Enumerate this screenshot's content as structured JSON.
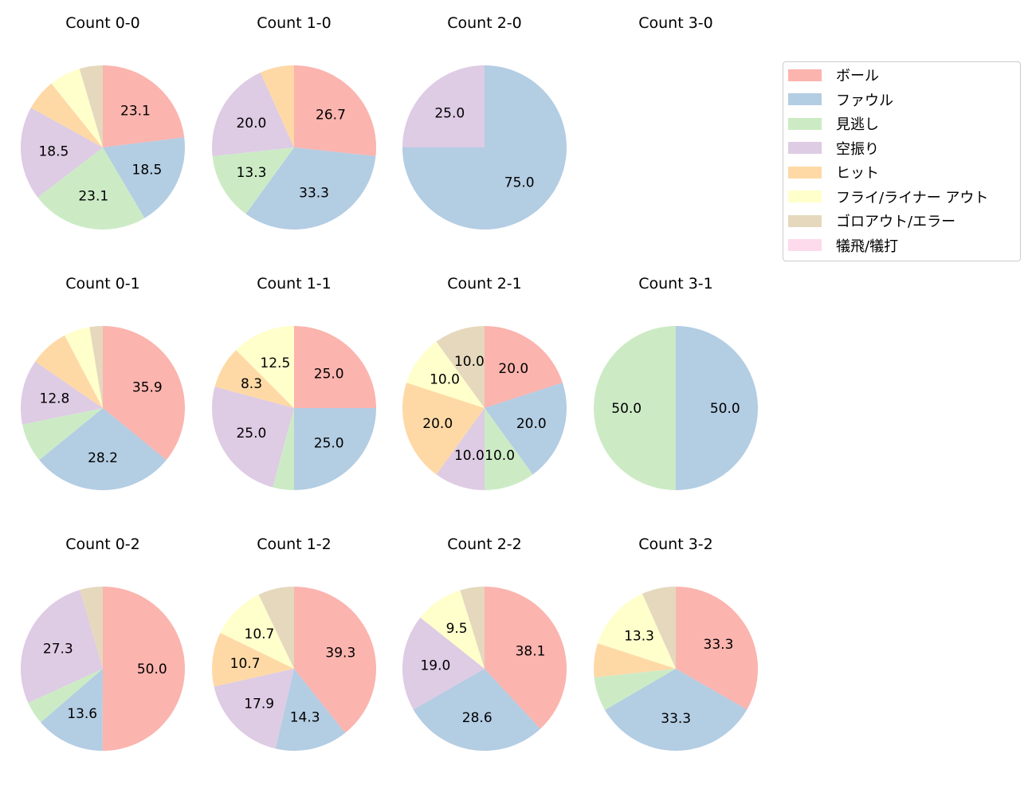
{
  "chart_data": {
    "type": "pie",
    "categories": [
      "ボール",
      "ファウル",
      "見逃し",
      "空振り",
      "ヒット",
      "フライ/ライナー アウト",
      "ゴロアウト/エラー",
      "犠飛/犠打"
    ],
    "colors": [
      "#fbb4ae",
      "#b3cde3",
      "#ccebc5",
      "#decbe4",
      "#fed9a6",
      "#ffffcc",
      "#e5d8bd",
      "#fddaec"
    ],
    "legend_position": "right",
    "charts": [
      {
        "title": "Count 0-0",
        "values": [
          23.1,
          18.5,
          23.1,
          18.5,
          6.2,
          6.2,
          4.6,
          0
        ]
      },
      {
        "title": "Count 1-0",
        "values": [
          26.7,
          33.3,
          13.3,
          20.0,
          6.7,
          0,
          0,
          0
        ]
      },
      {
        "title": "Count 2-0",
        "values": [
          0,
          75.0,
          0,
          25.0,
          0,
          0,
          0,
          0
        ]
      },
      {
        "title": "Count 3-0",
        "values": [
          0,
          0,
          0,
          0,
          0,
          0,
          0,
          0
        ]
      },
      {
        "title": "Count 0-1",
        "values": [
          35.9,
          28.2,
          7.7,
          12.8,
          7.7,
          5.1,
          2.6,
          0
        ]
      },
      {
        "title": "Count 1-1",
        "values": [
          25.0,
          25.0,
          4.2,
          25.0,
          8.3,
          12.5,
          0,
          0
        ]
      },
      {
        "title": "Count 2-1",
        "values": [
          20.0,
          20.0,
          10.0,
          10.0,
          20.0,
          10.0,
          10.0,
          0
        ]
      },
      {
        "title": "Count 3-1",
        "values": [
          0,
          50.0,
          50.0,
          0,
          0,
          0,
          0,
          0
        ]
      },
      {
        "title": "Count 0-2",
        "values": [
          50.0,
          13.6,
          4.5,
          27.3,
          0,
          0,
          4.5,
          0
        ]
      },
      {
        "title": "Count 1-2",
        "values": [
          39.3,
          14.3,
          0,
          17.9,
          10.7,
          10.7,
          7.1,
          0
        ]
      },
      {
        "title": "Count 2-2",
        "values": [
          38.1,
          28.6,
          0,
          19.0,
          0,
          9.5,
          4.8,
          0
        ]
      },
      {
        "title": "Count 3-2",
        "values": [
          33.3,
          33.3,
          6.7,
          0,
          6.7,
          13.3,
          6.7,
          0
        ]
      }
    ]
  }
}
